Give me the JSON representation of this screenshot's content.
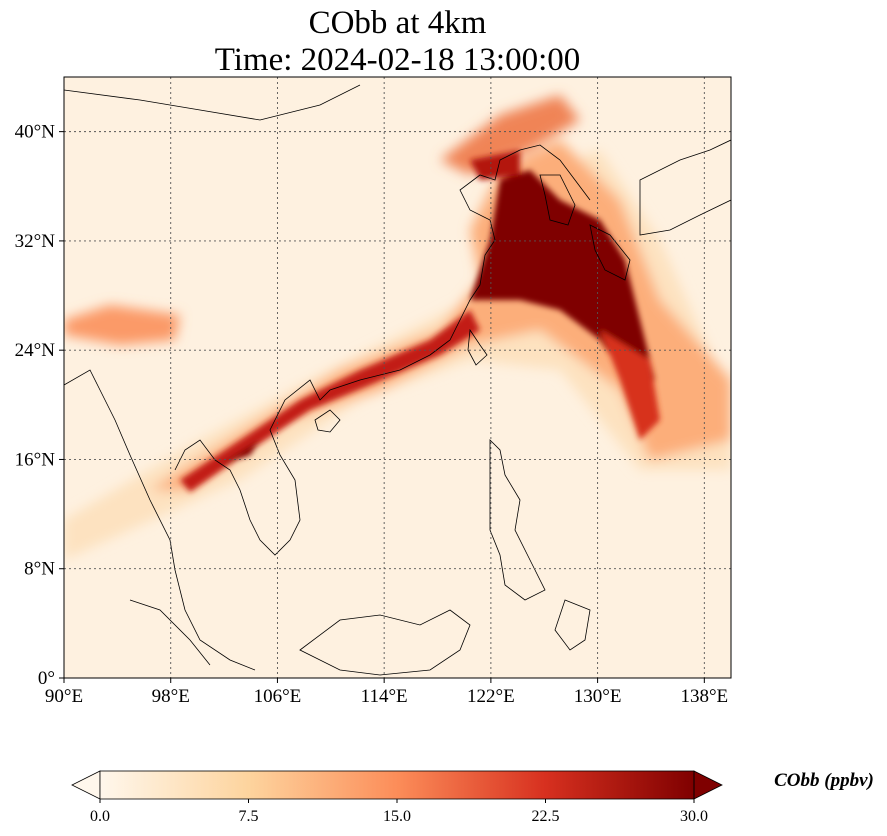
{
  "title": {
    "line1": "CObb at 4km",
    "line2": "Time: 2024-02-18 13:00:00"
  },
  "map": {
    "projection": "PlateCarree",
    "lon_range": [
      90,
      140
    ],
    "lat_range": [
      0,
      44
    ],
    "gridlines": "dotted",
    "lon_ticks": [
      {
        "value": 90,
        "label": "90°E"
      },
      {
        "value": 98,
        "label": "98°E"
      },
      {
        "value": 106,
        "label": "106°E"
      },
      {
        "value": 114,
        "label": "114°E"
      },
      {
        "value": 122,
        "label": "122°E"
      },
      {
        "value": 130,
        "label": "130°E"
      },
      {
        "value": 138,
        "label": "138°E"
      }
    ],
    "lat_ticks": [
      {
        "value": 0,
        "label": "0°"
      },
      {
        "value": 8,
        "label": "8°N"
      },
      {
        "value": 16,
        "label": "16°N"
      },
      {
        "value": 24,
        "label": "24°N"
      },
      {
        "value": 32,
        "label": "32°N"
      },
      {
        "value": 40,
        "label": "40°N"
      }
    ]
  },
  "colorbar": {
    "label": "CObb (ppbv)",
    "colormap": "OrRd",
    "range": [
      0,
      30
    ],
    "extend": "both",
    "ticks": [
      "0.0",
      "7.5",
      "15.0",
      "22.5",
      "30.0"
    ],
    "colors": {
      "low": "#fff7ec",
      "mid_low": "#fdd49e",
      "mid": "#fc8d59",
      "mid_high": "#d7301f",
      "high": "#7f0000"
    }
  }
}
